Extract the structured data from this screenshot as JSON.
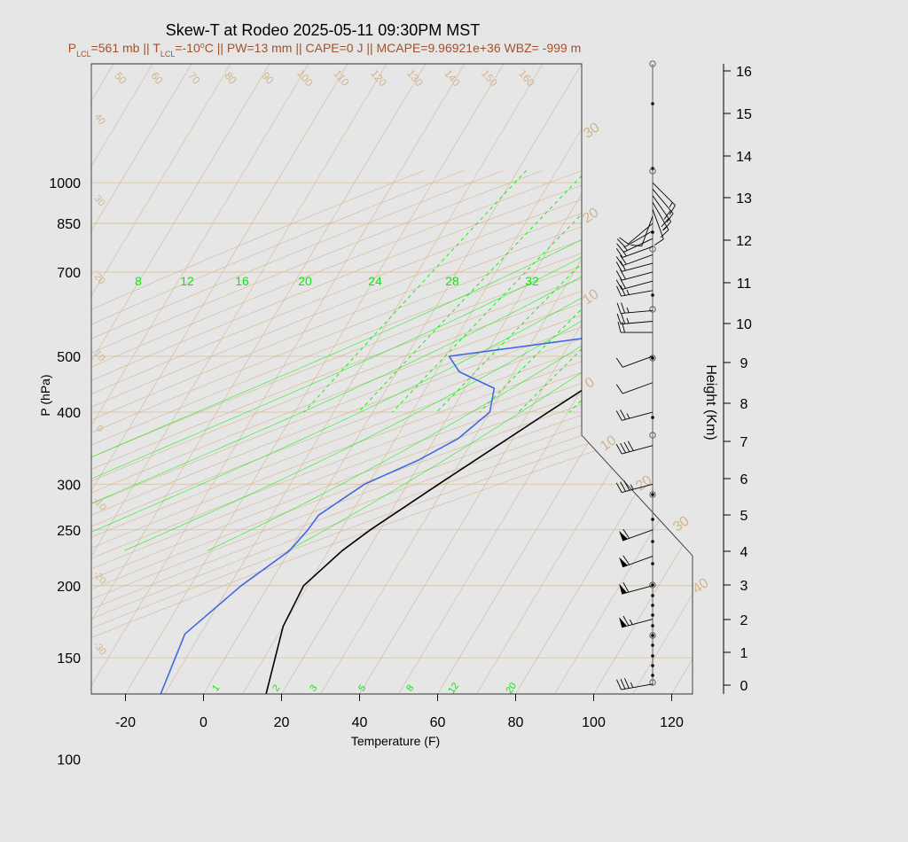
{
  "chart_data": {
    "type": "line",
    "title": "Skew-T at Rodeo 2025-05-11 09:30PM MST",
    "subtitle_parts": [
      {
        "t": "P"
      },
      {
        "t": "LCL",
        "sub": true
      },
      {
        "t": "=561 mb || T"
      },
      {
        "t": "LCL",
        "sub": true
      },
      {
        "t": "=-10"
      },
      {
        "t": "o",
        "sup": true
      },
      {
        "t": "C || PW=13 mm || CAPE=0 J || MCAPE=9.96921e+36 WBZ= -999 m"
      }
    ],
    "xlabel": "Temperature (F)",
    "ylabel": "P (hPa)",
    "y2label": "Height (Km)",
    "xlim": [
      -29,
      125
    ],
    "ylim_hpa": [
      1050,
      100
    ],
    "x_ticks": [
      -20,
      0,
      20,
      40,
      60,
      80,
      100,
      120
    ],
    "p_ticks": [
      100,
      150,
      200,
      250,
      300,
      400,
      500,
      700,
      850,
      1000
    ],
    "height_ticks": [
      0,
      1,
      2,
      3,
      4,
      5,
      6,
      7,
      8,
      9,
      10,
      11,
      12,
      13,
      14,
      15,
      16
    ],
    "mixing_ratio_labels_top": [
      8,
      12,
      16,
      20,
      24,
      28,
      32
    ],
    "mixing_ratio_labels_bottom": [
      "1",
      "2",
      "3",
      "5",
      "8",
      "12",
      "20"
    ],
    "dry_adiabat_labels": [
      50,
      60,
      70,
      80,
      90,
      100,
      110,
      120,
      130,
      140,
      150,
      160
    ],
    "side_temp_labels": [
      "40",
      "30",
      "20",
      "10",
      "0",
      "-10",
      "-20",
      "-30"
    ],
    "right_temp_labels": [
      "30",
      "20",
      "10",
      "0",
      "10",
      "20",
      "30",
      "40"
    ],
    "colors": {
      "temperature": "#000000",
      "dewpoint": "#4169e1",
      "mixing_ratio": "#00ee00",
      "isotherm": "#d2b48c",
      "subtitle": "#a0522d",
      "background": "#e6e6e6"
    },
    "temperature_profile": [
      [
        868,
        87.6
      ],
      [
        865,
        91.0
      ],
      [
        850,
        90.5
      ],
      [
        800,
        87.5
      ],
      [
        700,
        76.0
      ],
      [
        600,
        64.0
      ],
      [
        550,
        58.0
      ],
      [
        530,
        58.5
      ],
      [
        500,
        58.0
      ],
      [
        480,
        56.0
      ],
      [
        400,
        45.0
      ],
      [
        300,
        28.0
      ],
      [
        250,
        17.5
      ],
      [
        230,
        13.5
      ],
      [
        200,
        9.0
      ],
      [
        170,
        10.0
      ],
      [
        130,
        16.0
      ],
      [
        100,
        24.0
      ]
    ],
    "dewpoint_profile": [
      [
        863,
        33.5
      ],
      [
        845,
        35.0
      ],
      [
        800,
        36.5
      ],
      [
        750,
        40.5
      ],
      [
        700,
        45.5
      ],
      [
        570,
        52.0
      ],
      [
        540,
        45.0
      ],
      [
        500,
        11.0
      ],
      [
        470,
        16.0
      ],
      [
        440,
        27.5
      ],
      [
        400,
        30.0
      ],
      [
        360,
        26.0
      ],
      [
        330,
        19.0
      ],
      [
        300,
        9.0
      ],
      [
        265,
        2.0
      ],
      [
        250,
        1.5
      ],
      [
        230,
        0.0
      ],
      [
        200,
        -7.0
      ],
      [
        165,
        -14.0
      ],
      [
        130,
        -11.0
      ],
      [
        100,
        11.0
      ]
    ],
    "wind_barbs": [
      {
        "p": 1000,
        "dir": 135,
        "spd": 15
      },
      {
        "p": 975,
        "dir": 140,
        "spd": 20
      },
      {
        "p": 950,
        "dir": 145,
        "spd": 20
      },
      {
        "p": 925,
        "dir": 150,
        "spd": 15
      },
      {
        "p": 900,
        "dir": 160,
        "spd": 10
      },
      {
        "p": 875,
        "dir": 200,
        "spd": 10
      },
      {
        "p": 850,
        "dir": 230,
        "spd": 10
      },
      {
        "p": 825,
        "dir": 240,
        "spd": 10
      },
      {
        "p": 800,
        "dir": 245,
        "spd": 15
      },
      {
        "p": 775,
        "dir": 250,
        "spd": 15
      },
      {
        "p": 750,
        "dir": 250,
        "spd": 20
      },
      {
        "p": 725,
        "dir": 255,
        "spd": 20
      },
      {
        "p": 700,
        "dir": 255,
        "spd": 20
      },
      {
        "p": 675,
        "dir": 255,
        "spd": 20
      },
      {
        "p": 650,
        "dir": 260,
        "spd": 25
      },
      {
        "p": 600,
        "dir": 265,
        "spd": 25
      },
      {
        "p": 575,
        "dir": 265,
        "spd": 25
      },
      {
        "p": 550,
        "dir": 270,
        "spd": 20
      },
      {
        "p": 500,
        "dir": 250,
        "spd": 10
      },
      {
        "p": 450,
        "dir": 250,
        "spd": 10
      },
      {
        "p": 400,
        "dir": 255,
        "spd": 25
      },
      {
        "p": 350,
        "dir": 255,
        "spd": 40
      },
      {
        "p": 300,
        "dir": 255,
        "spd": 35
      },
      {
        "p": 250,
        "dir": 250,
        "spd": 60
      },
      {
        "p": 225,
        "dir": 250,
        "spd": 60
      },
      {
        "p": 200,
        "dir": 255,
        "spd": 60
      },
      {
        "p": 175,
        "dir": 255,
        "spd": 65
      },
      {
        "p": 135,
        "dir": 260,
        "spd": 35
      }
    ]
  }
}
